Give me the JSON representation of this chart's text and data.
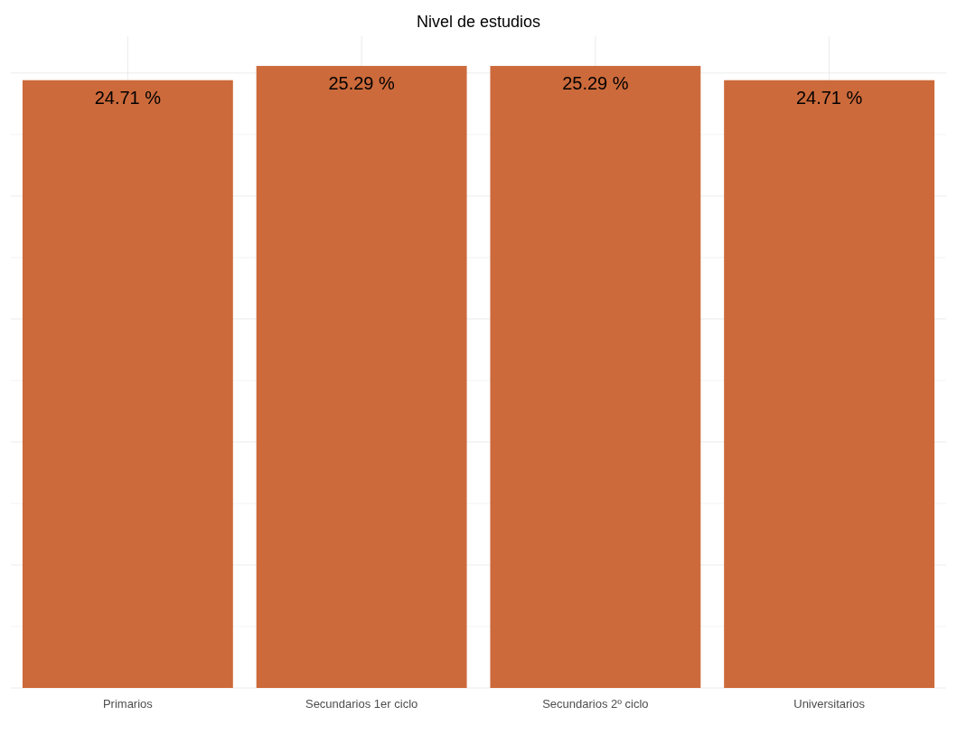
{
  "chart_data": {
    "type": "bar",
    "title": "Nivel de estudios",
    "categories": [
      "Primarios",
      "Secundarios 1er ciclo",
      "Secundarios 2º ciclo",
      "Universitarios"
    ],
    "values": [
      24.71,
      25.29,
      25.29,
      24.71
    ],
    "value_labels": [
      "24.71 %",
      "25.29 %",
      "25.29 %",
      "24.71 %"
    ],
    "color": "#cc6a3b",
    "ylim": [
      0,
      26.5
    ],
    "yticks": [
      {
        "value": 0,
        "label": null
      },
      {
        "value": 2.5,
        "label": null
      },
      {
        "value": 5,
        "label": null
      },
      {
        "value": 7.5,
        "label": null
      },
      {
        "value": 10,
        "label": null
      },
      {
        "value": 12.5,
        "label": null
      },
      {
        "value": 15,
        "label": null
      },
      {
        "value": 17.5,
        "label": null
      },
      {
        "value": 20,
        "label": null
      },
      {
        "value": 22.5,
        "label": null
      },
      {
        "value": 25,
        "label": null
      }
    ],
    "grid": true,
    "tick_labels": "x"
  }
}
